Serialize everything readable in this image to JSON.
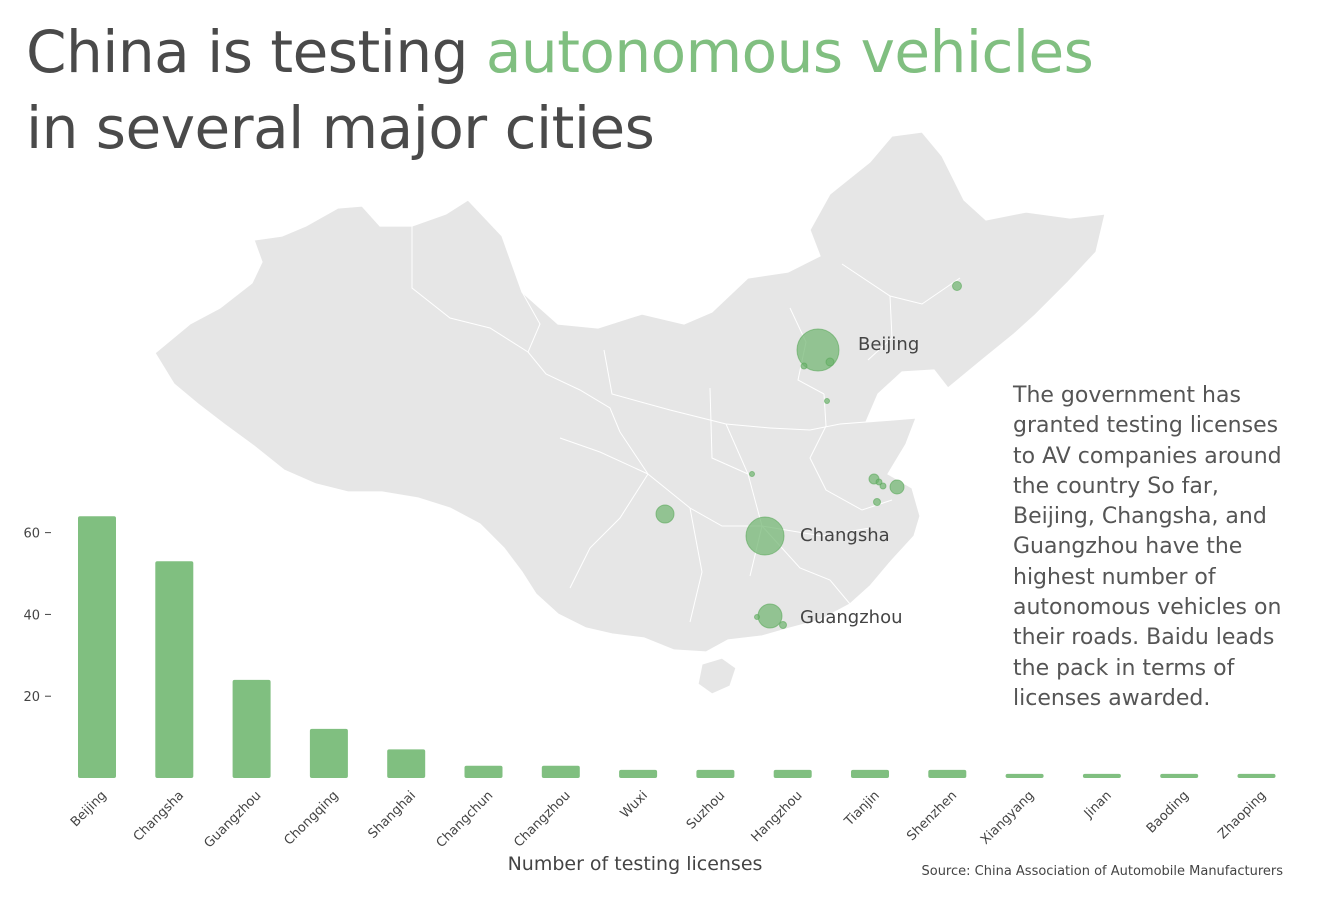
{
  "title": {
    "part1": "China is testing ",
    "accent": "autonomous vehicles",
    "part2": " in several major cities"
  },
  "description": "The government has granted testing licenses to AV companies around the country So far, Beijing, Changsha, and Guangzhou have the highest number of autonomous vehicles on their roads. Baidu leads the pack in terms of licenses awarded.",
  "source": "Source: China Association of Automobile Manufacturers",
  "colors": {
    "bar": "#80bf80",
    "bubble": "#6db46d",
    "map_fill": "#e6e6e6",
    "map_stroke": "#ffffff",
    "text": "#4a4a4a"
  },
  "map": {
    "labels": {
      "beijing": "Beijing",
      "changsha": "Changsha",
      "guangzhou": "Guangzhou"
    }
  },
  "chart_data": {
    "type": "bar",
    "xlabel": "Number of testing licenses",
    "ylabel": "",
    "ylim": [
      0,
      67
    ],
    "yticks": [
      20,
      40,
      60
    ],
    "grid": false,
    "categories": [
      "Beijing",
      "Changsha",
      "Guangzhou",
      "Chongqing",
      "Shanghai",
      "Changchun",
      "Changzhou",
      "Wuxi",
      "Suzhou",
      "Hangzhou",
      "Tianjin",
      "Shenzhen",
      "Xiangyang",
      "Jinan",
      "Baoding",
      "Zhaoping"
    ],
    "values": [
      64,
      53,
      24,
      12,
      7,
      3,
      3,
      2,
      2,
      2,
      2,
      2,
      1,
      1,
      1,
      1
    ]
  }
}
